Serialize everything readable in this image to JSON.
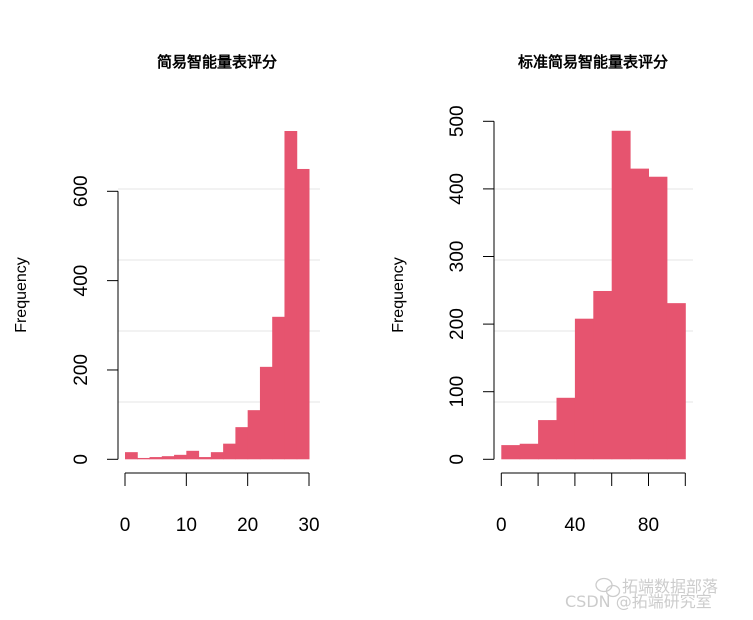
{
  "chart_data": [
    {
      "type": "bar",
      "title": "简易智能量表评分",
      "xlabel": "",
      "ylabel": "Frequency",
      "bin_edges": [
        0,
        2,
        4,
        6,
        8,
        10,
        12,
        14,
        16,
        18,
        20,
        22,
        24,
        26,
        28,
        30
      ],
      "values": [
        16,
        3,
        5,
        7,
        10,
        19,
        5,
        16,
        35,
        72,
        110,
        207,
        319,
        735,
        650
      ],
      "xticks": [
        0,
        10,
        20,
        30
      ],
      "xtick_labels": [
        "0",
        "10",
        "20",
        "30"
      ],
      "yticks": [
        0,
        200,
        400,
        600
      ],
      "ytick_labels": [
        "0",
        "200",
        "400",
        "600"
      ],
      "xlim": [
        0,
        30
      ],
      "ylim": [
        0,
        600
      ],
      "bar_color": "#E6546F"
    },
    {
      "type": "bar",
      "title": "标准简易智能量表评分",
      "xlabel": "",
      "ylabel": "Frequency",
      "bin_edges": [
        0,
        10,
        20,
        30,
        40,
        50,
        60,
        70,
        80,
        90,
        100
      ],
      "values": [
        21,
        23,
        58,
        91,
        208,
        249,
        486,
        430,
        418,
        231
      ],
      "xticks": [
        0,
        20,
        40,
        60,
        80,
        100
      ],
      "xtick_labels": [
        "0",
        "",
        "40",
        "",
        "80",
        ""
      ],
      "yticks": [
        0,
        100,
        200,
        300,
        400,
        500
      ],
      "ytick_labels": [
        "0",
        "100",
        "200",
        "300",
        "400",
        "500"
      ],
      "xlim": [
        0,
        100
      ],
      "ylim": [
        0,
        500
      ],
      "bar_color": "#E6546F"
    }
  ],
  "watermark": {
    "line1": "拓端数据部落",
    "line2": "CSDN @拓端研究室",
    "icon": "wechat-icon"
  }
}
